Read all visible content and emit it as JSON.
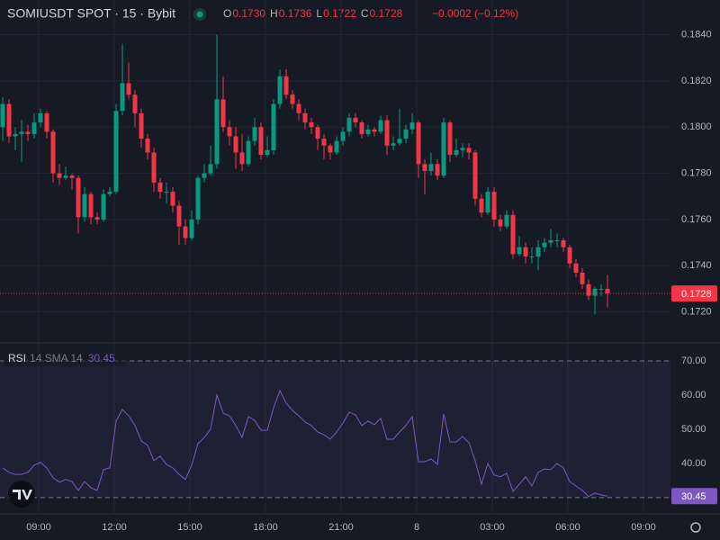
{
  "header": {
    "symbol": "SOMIUSDT SPOT · 15 · Bybit",
    "ohlc": [
      {
        "key": "O",
        "value": "0.1730"
      },
      {
        "key": "H",
        "value": "0.1736"
      },
      {
        "key": "L",
        "value": "0.1722"
      },
      {
        "key": "C",
        "value": "0.1728"
      }
    ],
    "change": "−0.0002 (−0.12%)"
  },
  "chart_data": [
    {
      "type": "candlestick",
      "up_color": "#089981",
      "down_color": "#f23645",
      "open": [
        0.18,
        0.181,
        0.1796,
        0.1797,
        0.1798,
        0.1797,
        0.1802,
        0.1806,
        0.1798,
        0.178,
        0.1778,
        0.1779,
        0.1778,
        0.1761,
        0.1771,
        0.1761,
        0.176,
        0.1771,
        0.1772,
        0.1807,
        0.1819,
        0.1814,
        0.1806,
        0.1795,
        0.1789,
        0.1776,
        0.1772,
        0.1772,
        0.1766,
        0.1757,
        0.1752,
        0.176,
        0.1778,
        0.178,
        0.1784,
        0.1812,
        0.18,
        0.1796,
        0.1789,
        0.1784,
        0.1794,
        0.18,
        0.1788,
        0.179,
        0.181,
        0.1822,
        0.1814,
        0.181,
        0.1806,
        0.1802,
        0.18,
        0.1795,
        0.1792,
        0.1789,
        0.1794,
        0.1798,
        0.1804,
        0.1802,
        0.1797,
        0.1799,
        0.1798,
        0.1803,
        0.1792,
        0.1793,
        0.1795,
        0.1799,
        0.1802,
        0.1784,
        0.1781,
        0.1784,
        0.1779,
        0.1802,
        0.1788,
        0.179,
        0.1791,
        0.1789,
        0.1769,
        0.1763,
        0.1772,
        0.176,
        0.1757,
        0.1762,
        0.1745,
        0.1748,
        0.1744,
        0.1744,
        0.1748,
        0.175,
        0.1751,
        0.1751,
        0.1748,
        0.1741,
        0.1737,
        0.1732,
        0.1727,
        0.173,
        0.173
      ],
      "high": [
        0.1813,
        0.1812,
        0.18,
        0.1803,
        0.1801,
        0.1806,
        0.1808,
        0.1807,
        0.1799,
        0.1784,
        0.1783,
        0.178,
        0.1779,
        0.1774,
        0.1772,
        0.1763,
        0.1773,
        0.1774,
        0.181,
        0.1836,
        0.1828,
        0.1816,
        0.1808,
        0.1797,
        0.1791,
        0.1778,
        0.1776,
        0.1774,
        0.1768,
        0.176,
        0.1764,
        0.1779,
        0.1784,
        0.1792,
        0.184,
        0.1822,
        0.1803,
        0.18,
        0.1797,
        0.1796,
        0.1804,
        0.1802,
        0.1796,
        0.1812,
        0.1825,
        0.1825,
        0.1816,
        0.1812,
        0.1808,
        0.1804,
        0.1801,
        0.1797,
        0.1793,
        0.1796,
        0.18,
        0.1806,
        0.1806,
        0.1803,
        0.1801,
        0.18,
        0.1805,
        0.1805,
        0.1796,
        0.1808,
        0.1801,
        0.1806,
        0.1803,
        0.1786,
        0.1789,
        0.1786,
        0.1804,
        0.1803,
        0.1795,
        0.1793,
        0.1793,
        0.179,
        0.1771,
        0.1774,
        0.1774,
        0.1762,
        0.1764,
        0.1764,
        0.1753,
        0.175,
        0.1748,
        0.1751,
        0.1752,
        0.1756,
        0.1754,
        0.1752,
        0.1749,
        0.1743,
        0.1739,
        0.1734,
        0.1731,
        0.1732,
        0.1736
      ],
      "low": [
        0.1794,
        0.1793,
        0.179,
        0.1785,
        0.1794,
        0.1795,
        0.18,
        0.1795,
        0.1776,
        0.1775,
        0.1777,
        0.1773,
        0.1754,
        0.1759,
        0.1758,
        0.1758,
        0.1759,
        0.177,
        0.1771,
        0.1805,
        0.1812,
        0.18,
        0.1791,
        0.1786,
        0.1772,
        0.1769,
        0.1767,
        0.1763,
        0.1749,
        0.1749,
        0.1751,
        0.1758,
        0.1776,
        0.1779,
        0.1782,
        0.1798,
        0.1792,
        0.1782,
        0.1781,
        0.1783,
        0.1792,
        0.1786,
        0.1787,
        0.1788,
        0.1808,
        0.1812,
        0.1808,
        0.1803,
        0.1799,
        0.1797,
        0.179,
        0.1786,
        0.1786,
        0.1788,
        0.1792,
        0.1796,
        0.18,
        0.1795,
        0.1796,
        0.1796,
        0.1797,
        0.1788,
        0.179,
        0.1792,
        0.1793,
        0.1797,
        0.1778,
        0.1771,
        0.1779,
        0.1777,
        0.1778,
        0.1785,
        0.1787,
        0.1787,
        0.1786,
        0.1766,
        0.1761,
        0.1762,
        0.1757,
        0.1755,
        0.1756,
        0.1743,
        0.1744,
        0.1741,
        0.1741,
        0.1738,
        0.1746,
        0.1748,
        0.1748,
        0.1746,
        0.1739,
        0.1735,
        0.173,
        0.1725,
        0.1719,
        0.1727,
        0.1722
      ],
      "close": [
        0.181,
        0.1796,
        0.1797,
        0.1798,
        0.1797,
        0.1802,
        0.1806,
        0.1798,
        0.178,
        0.1778,
        0.1779,
        0.1778,
        0.1761,
        0.1771,
        0.1761,
        0.176,
        0.1771,
        0.1772,
        0.1807,
        0.1819,
        0.1814,
        0.1806,
        0.1795,
        0.1789,
        0.1776,
        0.1772,
        0.1772,
        0.1766,
        0.1757,
        0.1752,
        0.176,
        0.1778,
        0.178,
        0.1784,
        0.1812,
        0.18,
        0.1796,
        0.1789,
        0.1784,
        0.1794,
        0.18,
        0.1788,
        0.179,
        0.181,
        0.1822,
        0.1814,
        0.181,
        0.1806,
        0.1802,
        0.18,
        0.1795,
        0.1792,
        0.1789,
        0.1794,
        0.1798,
        0.1804,
        0.1802,
        0.1797,
        0.1799,
        0.1798,
        0.1803,
        0.1792,
        0.1793,
        0.1795,
        0.1799,
        0.1802,
        0.1784,
        0.1781,
        0.1784,
        0.1779,
        0.1802,
        0.1788,
        0.179,
        0.1791,
        0.1789,
        0.1769,
        0.1763,
        0.1772,
        0.176,
        0.1757,
        0.1762,
        0.1745,
        0.1748,
        0.1744,
        0.1744,
        0.1748,
        0.175,
        0.1751,
        0.1751,
        0.1748,
        0.1741,
        0.1737,
        0.1732,
        0.1727,
        0.173,
        0.173,
        0.1728
      ],
      "ylim": [
        0.1707,
        0.1855
      ],
      "yticks": [
        {
          "value": 0.184,
          "label": "0.1840"
        },
        {
          "value": 0.182,
          "label": "0.1820"
        },
        {
          "value": 0.18,
          "label": "0.1800"
        },
        {
          "value": 0.178,
          "label": "0.1780"
        },
        {
          "value": 0.176,
          "label": "0.1760"
        },
        {
          "value": 0.174,
          "label": "0.1740"
        },
        {
          "value": 0.172,
          "label": "0.1720"
        }
      ],
      "last_price": {
        "value": 0.1728,
        "label": "0.1728"
      },
      "grid": true,
      "xticks": [
        "09:00",
        "12:00",
        "15:00",
        "18:00",
        "21:00",
        "8",
        "03:00",
        "06:00",
        "09:00"
      ]
    },
    {
      "type": "line",
      "title": "RSI",
      "params": "14 SMA 14",
      "series": [
        {
          "name": "RSI",
          "color": "#7e57c2",
          "values": [
            38.7,
            37.4,
            36.8,
            36.8,
            37.4,
            39.5,
            40.3,
            38.7,
            35.8,
            34.5,
            35.3,
            34.7,
            32.1,
            34.7,
            32.9,
            32.1,
            38.2,
            38.7,
            52.4,
            55.8,
            53.9,
            51.1,
            46.6,
            45.3,
            40.8,
            42.1,
            39.7,
            38.7,
            36.8,
            35.3,
            39.5,
            45.8,
            47.6,
            50.0,
            60.0,
            54.7,
            53.9,
            51.1,
            47.6,
            53.7,
            52.6,
            49.7,
            49.7,
            56.3,
            61.3,
            57.6,
            55.5,
            53.9,
            52.1,
            51.1,
            49.2,
            48.4,
            47.1,
            49.2,
            51.8,
            55.0,
            54.2,
            51.1,
            52.4,
            51.3,
            53.2,
            47.1,
            47.1,
            49.2,
            51.1,
            53.7,
            40.5,
            40.5,
            41.3,
            39.7,
            54.5,
            46.3,
            46.3,
            47.9,
            46.1,
            40.8,
            33.9,
            40.0,
            36.6,
            36.1,
            37.1,
            31.8,
            33.9,
            36.1,
            33.4,
            37.4,
            38.4,
            38.2,
            40.0,
            38.7,
            34.7,
            33.4,
            32.1,
            30.3,
            31.3,
            30.8,
            30.45
          ]
        }
      ],
      "last_label": {
        "value": 30.45,
        "label": "30.45"
      },
      "band": [
        30,
        70
      ],
      "ylim": [
        25.5,
        75
      ],
      "yticks": [
        {
          "value": 70,
          "label": "70.00"
        },
        {
          "value": 60,
          "label": "60.00"
        },
        {
          "value": 50,
          "label": "50.00"
        },
        {
          "value": 40,
          "label": "40.00"
        }
      ]
    }
  ]
}
